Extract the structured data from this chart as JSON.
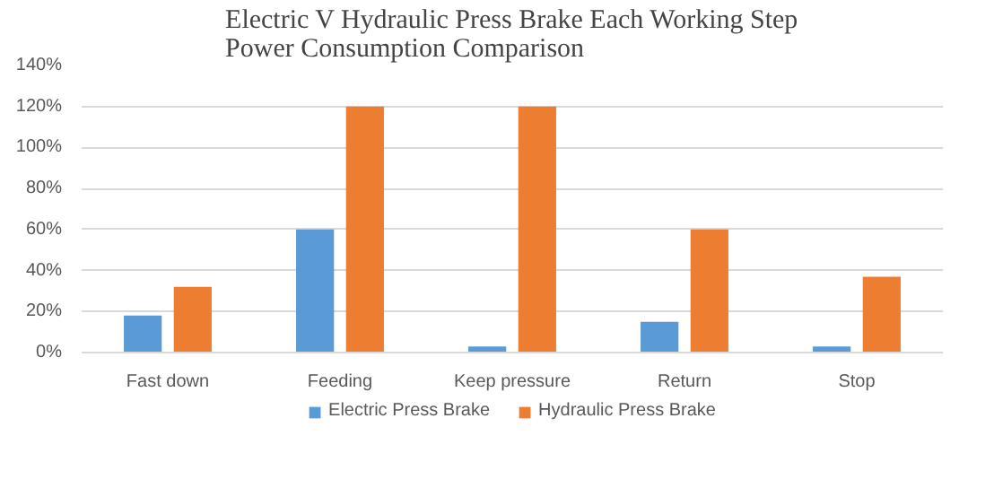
{
  "chart_data": {
    "type": "bar",
    "title": "Electric V Hydraulic Press Brake Each Working Step\nPower Consumption Comparison",
    "categories": [
      "Fast down",
      "Feeding",
      "Keep pressure",
      "Return",
      "Stop"
    ],
    "series": [
      {
        "name": "Electric Press Brake",
        "color": "#5b9bd5",
        "values": [
          18,
          60,
          3,
          15,
          3
        ]
      },
      {
        "name": "Hydraulic Press Brake",
        "color": "#ed7d31",
        "values": [
          32,
          120,
          120,
          60,
          37
        ]
      }
    ],
    "ylim": [
      0,
      140
    ],
    "yticks": [
      {
        "value": 0,
        "label": "0%"
      },
      {
        "value": 20,
        "label": "20%"
      },
      {
        "value": 40,
        "label": "40%"
      },
      {
        "value": 60,
        "label": "60%"
      },
      {
        "value": 80,
        "label": "80%"
      },
      {
        "value": 100,
        "label": "100%"
      },
      {
        "value": 120,
        "label": "120%"
      },
      {
        "value": 140,
        "label": "140%"
      }
    ],
    "grid": "y",
    "legend": "bottom"
  }
}
